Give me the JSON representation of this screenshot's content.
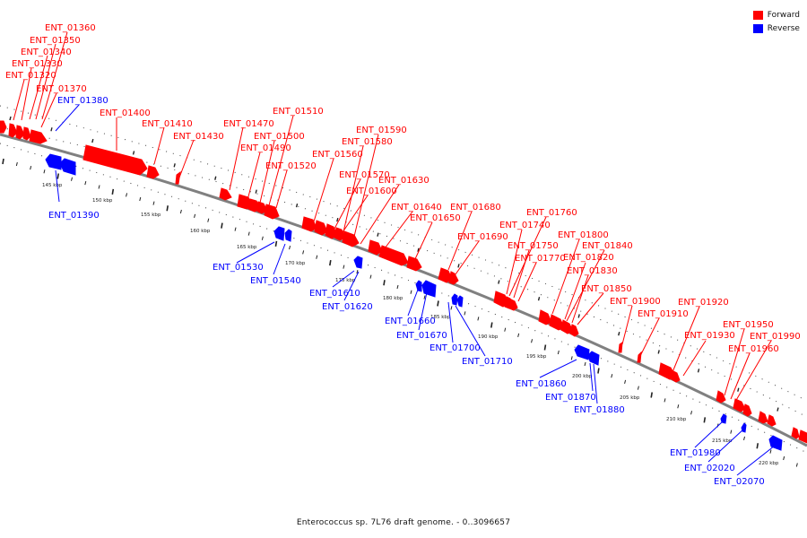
{
  "legend": [
    {
      "label": "Forward",
      "color": "#ff0000"
    },
    {
      "label": "Reverse",
      "color": "#0000ff"
    }
  ],
  "caption": "Enterococcus sp. 7L76 draft genome. - 0..3096657",
  "colors": {
    "forward": "#ff0000",
    "reverse": "#0000ff",
    "backbone": "#808080"
  },
  "scale_labels": [
    "145 kbp",
    "150 kbp",
    "155 kbp",
    "160 kbp",
    "165 kbp",
    "170 kbp",
    "175 kbp",
    "180 kbp",
    "185 kbp",
    "190 kbp",
    "195 kbp",
    "200 kbp",
    "205 kbp",
    "210 kbp",
    "215 kbp",
    "220 kbp"
  ],
  "forward_genes": [
    "ENT_01360",
    "ENT_01350",
    "ENT_01340",
    "ENT_01330",
    "ENT_01320",
    "ENT_01370",
    "ENT_01400",
    "ENT_01410",
    "ENT_01430",
    "ENT_01470",
    "ENT_01510",
    "ENT_01500",
    "ENT_01490",
    "ENT_01520",
    "ENT_01590",
    "ENT_01580",
    "ENT_01560",
    "ENT_01570",
    "ENT_01600",
    "ENT_01630",
    "ENT_01640",
    "ENT_01650",
    "ENT_01680",
    "ENT_01690",
    "ENT_01760",
    "ENT_01740",
    "ENT_01750",
    "ENT_01770",
    "ENT_01800",
    "ENT_01840",
    "ENT_01820",
    "ENT_01830",
    "ENT_01850",
    "ENT_01900",
    "ENT_01910",
    "ENT_01920",
    "ENT_01930",
    "ENT_01950",
    "ENT_01990",
    "ENT_01960"
  ],
  "reverse_genes": [
    "ENT_01380",
    "ENT_01390",
    "ENT_01530",
    "ENT_01540",
    "ENT_01610",
    "ENT_01620",
    "ENT_01660",
    "ENT_01670",
    "ENT_01700",
    "ENT_01710",
    "ENT_01860",
    "ENT_01870",
    "ENT_01880",
    "ENT_01980",
    "ENT_02020",
    "ENT_02070"
  ]
}
